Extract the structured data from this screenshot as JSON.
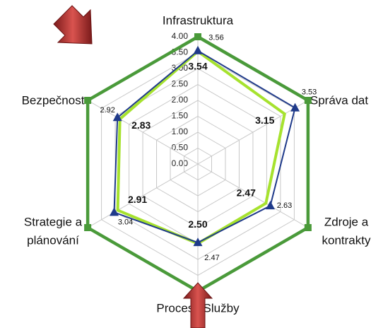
{
  "chart_data": {
    "type": "radar",
    "categories": [
      [
        "Infrastruktura"
      ],
      [
        "Správa dat"
      ],
      [
        "Zdroje a",
        "kontrakty"
      ],
      [
        "Procesy Služby"
      ],
      [
        "Strategie a",
        "plánování"
      ],
      [
        "Bezpečnost"
      ]
    ],
    "ylim": [
      0,
      4
    ],
    "yticks": [
      {
        "value": 0,
        "label": "0.00"
      },
      {
        "value": 0.5,
        "label": "0.50"
      },
      {
        "value": 1,
        "label": "1.00"
      },
      {
        "value": 1.5,
        "label": "1.50"
      },
      {
        "value": 2,
        "label": "2.00"
      },
      {
        "value": 2.5,
        "label": "2.50"
      },
      {
        "value": 3,
        "label": "3.00"
      },
      {
        "value": 3.5,
        "label": "3.50"
      },
      {
        "value": 4,
        "label": "4.00"
      }
    ],
    "grid": true,
    "series": [
      {
        "color": "#4a9a3a",
        "marker": "square",
        "values": [
          4,
          4,
          4,
          4,
          4,
          4
        ]
      },
      {
        "color": "#a6e22e",
        "values": [
          3.54,
          3.15,
          2.47,
          2.5,
          2.91,
          2.83
        ],
        "value_labels": [
          "3.54",
          "3.15",
          "2.47",
          "2.50",
          "2.91",
          "2.83"
        ]
      },
      {
        "color": "#1f3a8a",
        "marker": "triangle",
        "values": [
          3.56,
          3.53,
          2.63,
          2.47,
          3.04,
          2.92
        ],
        "value_labels": [
          "3.56",
          "3.53",
          "2.63",
          "2.47",
          "3.04",
          "2.92"
        ]
      }
    ]
  }
}
